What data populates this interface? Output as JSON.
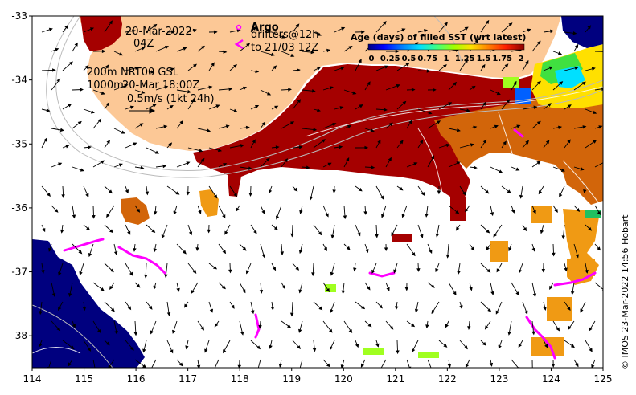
{
  "map": {
    "lon_range": [
      114,
      125
    ],
    "lat_range": [
      -38.5,
      -33
    ],
    "x_ticks": [
      "114",
      "115",
      "116",
      "117",
      "118",
      "119",
      "120",
      "121",
      "122",
      "123",
      "124",
      "125"
    ],
    "y_ticks": [
      "-33",
      "-34",
      "-35",
      "-36",
      "-37",
      "-38"
    ]
  },
  "annotations": {
    "date": "20-Mar-2022",
    "hour": "04Z",
    "argo_label": "Argo",
    "drifters_label": "drifters@12h",
    "drifters_to": "to 21/03 12Z",
    "isobath_200": "200m",
    "isobath_1000": "1000m",
    "product": "NRT00 GSL",
    "product_time": "20-Mar 18:00Z",
    "scale_label": "0.5m/s (1kt 24h)"
  },
  "colorbar": {
    "title": "Age (days) of filled SST (wrt latest)",
    "ticks": [
      "0",
      "0.25",
      "0.5",
      "0.75",
      "1",
      "1.25",
      "1.5",
      "1.75",
      "2"
    ],
    "colors": [
      "#00007f",
      "#0000ff",
      "#0080ff",
      "#00e0ff",
      "#40ff80",
      "#a0ff00",
      "#ffe000",
      "#ff8000",
      "#ff2000",
      "#8b0000"
    ]
  },
  "colors": {
    "land": "#fcc896",
    "deep_red": "#a50000",
    "orange": "#d2650a",
    "light_orange": "#f09a14",
    "navy": "#00007f",
    "magenta": "#ff00ff",
    "lime": "#a0ff20"
  },
  "credit": "© IMOS 23-Mar-2022 14:56 Hobart"
}
